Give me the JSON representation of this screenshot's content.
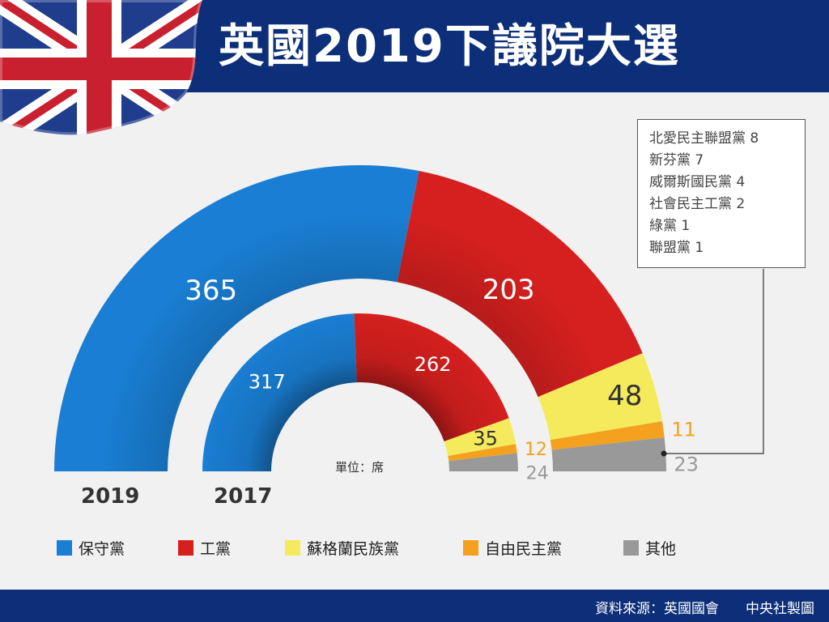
{
  "header": {
    "title": "英國2019下議院大選"
  },
  "footer": {
    "source": "資料來源：英國國會",
    "credit": "中央社製圖"
  },
  "unit_label": "單位：席",
  "chart_data": [
    {
      "type": "pie",
      "year": "2019",
      "categories": [
        "保守黨",
        "工黨",
        "蘇格蘭民族黨",
        "自由民主黨",
        "其他"
      ],
      "values": [
        365,
        203,
        48,
        11,
        23
      ]
    },
    {
      "type": "pie",
      "year": "2017",
      "categories": [
        "保守黨",
        "工黨",
        "蘇格蘭民族黨",
        "自由民主黨",
        "其他"
      ],
      "values": [
        317,
        262,
        35,
        12,
        24
      ]
    }
  ],
  "colors": {
    "保守黨": "#1a7fd4",
    "工黨": "#d6201f",
    "蘇格蘭民族黨": "#f4ea5b",
    "自由民主黨": "#f3a11e",
    "其他": "#999999"
  },
  "value_label_colors": {
    "保守黨": "#ffffff",
    "工黨": "#ffffff",
    "蘇格蘭民族黨": "#333333",
    "自由民主黨": "#f3a11e",
    "其他": "#999999"
  },
  "legend": [
    "保守黨",
    "工黨",
    "蘇格蘭民族黨",
    "自由民主黨",
    "其他"
  ],
  "others_note": [
    "北愛民主聯盟黨 8",
    "新芬黨 7",
    "威爾斯國民黨 4",
    "社會民主工黨 2",
    "綠黨 1",
    "聯盟黨 1"
  ]
}
